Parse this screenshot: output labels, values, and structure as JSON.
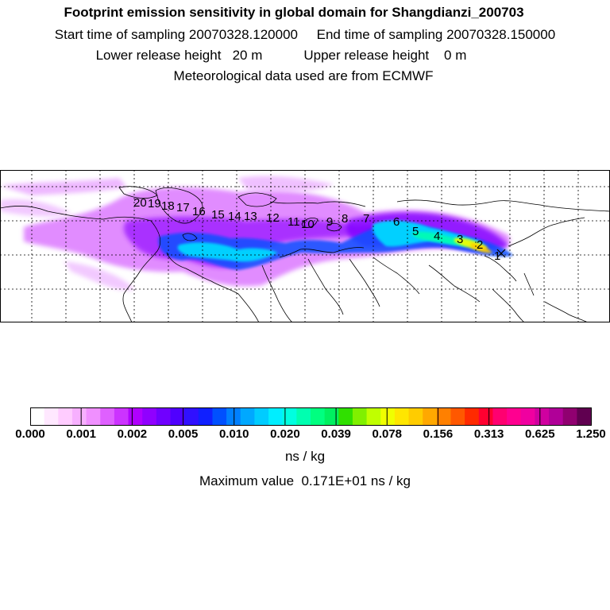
{
  "header": {
    "title": "Footprint emission sensitivity in global domain for Shangdianzi_200703",
    "line1": "Start time of sampling 20070328.120000     End time of sampling 20070328.150000",
    "line2": "Lower release height   20 m           Upper release height    0 m",
    "line3": "Meteorological data used are from ECMWF"
  },
  "map": {
    "trajectory_labels": [
      "1",
      "2",
      "3",
      "4",
      "5",
      "6",
      "7",
      "8",
      "9",
      "10",
      "11",
      "12",
      "13",
      "14",
      "15",
      "16",
      "17",
      "18",
      "19",
      "20"
    ]
  },
  "colorbar": {
    "tick_labels": [
      "0.000",
      "0.001",
      "0.002",
      "0.005",
      "0.010",
      "0.020",
      "0.039",
      "0.078",
      "0.156",
      "0.313",
      "0.625",
      "1.250"
    ],
    "units": "ns / kg",
    "colors": [
      "#ffffff",
      "#ffe8ff",
      "#ffccff",
      "#f7b0ff",
      "#f090ff",
      "#df60ff",
      "#cc33ff",
      "#b000ff",
      "#9000ff",
      "#7000ff",
      "#5000ff",
      "#3010ff",
      "#1020ff",
      "#0050ff",
      "#0080ff",
      "#00a8ff",
      "#00ccff",
      "#00eeff",
      "#00ffe0",
      "#00ffb0",
      "#00ff80",
      "#00f060",
      "#30e000",
      "#80f000",
      "#c0ff00",
      "#f0ff00",
      "#ffe600",
      "#ffcc00",
      "#ffa800",
      "#ff8000",
      "#ff5800",
      "#ff2a00",
      "#ff0030",
      "#ff0070",
      "#ff0090",
      "#f000a0",
      "#d000a0",
      "#b00098",
      "#900070",
      "#600050"
    ]
  },
  "max_value": "Maximum value  0.171E+01 ns / kg"
}
